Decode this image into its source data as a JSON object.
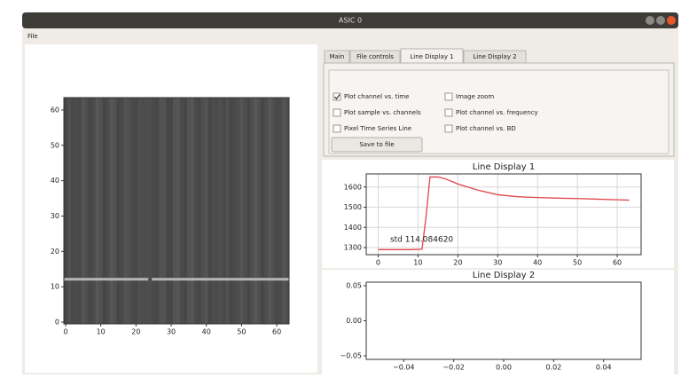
{
  "window": {
    "title": "ASIC 0"
  },
  "menu": [
    "File"
  ],
  "tabs": [
    "Main",
    "File controls",
    "Line Display 1",
    "Line Display 2"
  ],
  "active_tab": 2,
  "controls": {
    "checkboxes": [
      {
        "label": "Plot channel vs. time",
        "checked": true
      },
      {
        "label": "Image zoom",
        "checked": false
      },
      {
        "label": "Plot sample vs. channels",
        "checked": false
      },
      {
        "label": "Plot channel vs. frequency",
        "checked": false
      },
      {
        "label": "Pixel Time Series Line",
        "checked": false
      },
      {
        "label": "Plot channel vs. BD",
        "checked": false
      }
    ],
    "button": "Save to file"
  },
  "image_plot": {
    "xlim": [
      -0.5,
      63.5
    ],
    "ylim": [
      -0.5,
      63.5
    ],
    "xticks": [
      0,
      10,
      20,
      30,
      40,
      50,
      60
    ],
    "yticks": [
      0,
      10,
      20,
      30,
      40,
      50,
      60
    ]
  },
  "line_display_1": {
    "type": "line",
    "title": "Line Display 1",
    "x": [
      0,
      2,
      4,
      6,
      8,
      10,
      11,
      12,
      13,
      15,
      17,
      20,
      25,
      30,
      35,
      40,
      45,
      50,
      55,
      60,
      63
    ],
    "values": [
      1290,
      1290,
      1290,
      1290,
      1290,
      1291,
      1292,
      1450,
      1650,
      1650,
      1640,
      1615,
      1585,
      1562,
      1552,
      1548,
      1545,
      1543,
      1540,
      1537,
      1535
    ],
    "color": "#e0454a",
    "xlim": [
      -3,
      66
    ],
    "ylim": [
      1265,
      1665
    ],
    "xticks": [
      0,
      10,
      20,
      30,
      40,
      50,
      60
    ],
    "yticks": [
      1300,
      1400,
      1500,
      1600
    ],
    "grid": true,
    "annotation": "std 114.084620"
  },
  "line_display_2": {
    "type": "empty",
    "title": "Line Display 2",
    "xlim": [
      -0.055,
      0.055
    ],
    "ylim": [
      -0.055,
      0.055
    ],
    "xticks": [
      {
        "value": -0.04,
        "label": "−0.04"
      },
      {
        "value": -0.02,
        "label": "−0.02"
      },
      {
        "value": 0,
        "label": "0.00"
      },
      {
        "value": 0.02,
        "label": "0.02"
      },
      {
        "value": 0.04,
        "label": "0.04"
      }
    ],
    "yticks": [
      {
        "value": -0.05,
        "label": "−0.05"
      },
      {
        "value": 0,
        "label": "0.00"
      },
      {
        "value": 0.05,
        "label": "0.05"
      }
    ],
    "grid": false
  }
}
